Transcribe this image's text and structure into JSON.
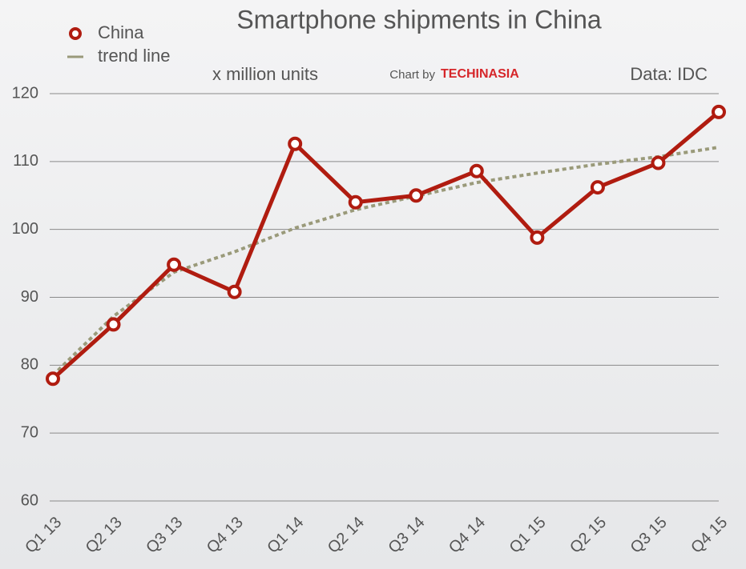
{
  "chart_data": {
    "type": "line",
    "title": "Smartphone shipments in China",
    "subtitle": "x million units",
    "credit_prefix": "Chart by",
    "credit_brand": "TECHINASIA",
    "source": "Data: IDC",
    "categories": [
      "Q1 13",
      "Q2 13",
      "Q3 13",
      "Q4 13",
      "Q1 14",
      "Q2 14",
      "Q3 14",
      "Q4 14",
      "Q1 15",
      "Q2 15",
      "Q3 15",
      "Q4 15"
    ],
    "series": [
      {
        "name": "China",
        "color": "#b01c10",
        "values": [
          78.0,
          86.0,
          94.8,
          90.8,
          112.6,
          104.0,
          105.0,
          108.6,
          98.8,
          106.2,
          109.8,
          117.3
        ]
      },
      {
        "name": "trend line",
        "color": "#9a9a7a",
        "dashed": true,
        "values": [
          78.5,
          87.2,
          93.7,
          96.7,
          100.2,
          102.9,
          104.9,
          106.9,
          108.3,
          109.6,
          110.7,
          112.1
        ]
      }
    ],
    "ylim": [
      60,
      120
    ],
    "yticks": [
      60,
      70,
      80,
      90,
      100,
      110,
      120
    ],
    "grid": true,
    "legend": "top-left"
  }
}
